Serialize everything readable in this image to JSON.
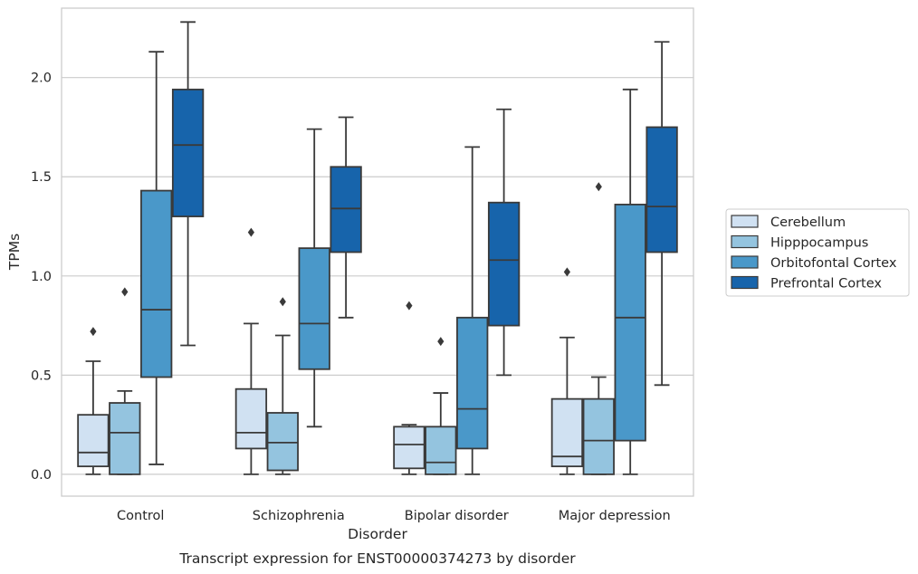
{
  "chart_data": {
    "type": "boxplot",
    "title": "Transcript expression for ENST00000374273 by disorder",
    "xlabel": "Disorder",
    "ylabel": "TPMs",
    "categories": [
      "Control",
      "Schizophrenia",
      "Bipolar disorder",
      "Major depression"
    ],
    "ylim": [
      -0.11,
      2.35
    ],
    "yticks": [
      0.0,
      0.5,
      1.0,
      1.5,
      2.0
    ],
    "ytick_labels": [
      "0.0",
      "0.5",
      "1.0",
      "1.5",
      "2.0"
    ],
    "grid": "horizontal",
    "legend_position": "right",
    "edge_color": "#3a3a3a",
    "series": [
      {
        "name": "Cerebellum",
        "color": "#d0e1f2",
        "boxes": [
          {
            "whislo": 0.0,
            "q1": 0.04,
            "med": 0.11,
            "q3": 0.3,
            "whishi": 0.57,
            "fliers": [
              0.72
            ]
          },
          {
            "whislo": 0.0,
            "q1": 0.13,
            "med": 0.21,
            "q3": 0.43,
            "whishi": 0.76,
            "fliers": [
              1.22
            ]
          },
          {
            "whislo": 0.0,
            "q1": 0.03,
            "med": 0.15,
            "q3": 0.24,
            "whishi": 0.25,
            "fliers": [
              0.85
            ]
          },
          {
            "whislo": 0.0,
            "q1": 0.04,
            "med": 0.09,
            "q3": 0.38,
            "whishi": 0.69,
            "fliers": [
              1.02
            ]
          }
        ]
      },
      {
        "name": "Hipppocampus",
        "color": "#94c4df",
        "boxes": [
          {
            "whislo": 0.0,
            "q1": 0.0,
            "med": 0.21,
            "q3": 0.36,
            "whishi": 0.42,
            "fliers": [
              0.92
            ]
          },
          {
            "whislo": 0.0,
            "q1": 0.02,
            "med": 0.16,
            "q3": 0.31,
            "whishi": 0.7,
            "fliers": [
              0.87
            ]
          },
          {
            "whislo": 0.0,
            "q1": 0.0,
            "med": 0.06,
            "q3": 0.24,
            "whishi": 0.41,
            "fliers": [
              0.67
            ]
          },
          {
            "whislo": 0.0,
            "q1": 0.0,
            "med": 0.17,
            "q3": 0.38,
            "whishi": 0.49,
            "fliers": [
              1.45
            ]
          }
        ]
      },
      {
        "name": "Orbitofontal Cortex",
        "color": "#4a98c9",
        "boxes": [
          {
            "whislo": 0.05,
            "q1": 0.49,
            "med": 0.83,
            "q3": 1.43,
            "whishi": 2.13,
            "fliers": []
          },
          {
            "whislo": 0.24,
            "q1": 0.53,
            "med": 0.76,
            "q3": 1.14,
            "whishi": 1.74,
            "fliers": []
          },
          {
            "whislo": 0.0,
            "q1": 0.13,
            "med": 0.33,
            "q3": 0.79,
            "whishi": 1.65,
            "fliers": []
          },
          {
            "whislo": 0.0,
            "q1": 0.17,
            "med": 0.79,
            "q3": 1.36,
            "whishi": 1.94,
            "fliers": []
          }
        ]
      },
      {
        "name": "Prefrontal Cortex",
        "color": "#1764ab",
        "boxes": [
          {
            "whislo": 0.65,
            "q1": 1.3,
            "med": 1.66,
            "q3": 1.94,
            "whishi": 2.28,
            "fliers": []
          },
          {
            "whislo": 0.79,
            "q1": 1.12,
            "med": 1.34,
            "q3": 1.55,
            "whishi": 1.8,
            "fliers": []
          },
          {
            "whislo": 0.5,
            "q1": 0.75,
            "med": 1.08,
            "q3": 1.37,
            "whishi": 1.84,
            "fliers": []
          },
          {
            "whislo": 0.45,
            "q1": 1.12,
            "med": 1.35,
            "q3": 1.75,
            "whishi": 2.18,
            "fliers": []
          }
        ]
      }
    ]
  }
}
